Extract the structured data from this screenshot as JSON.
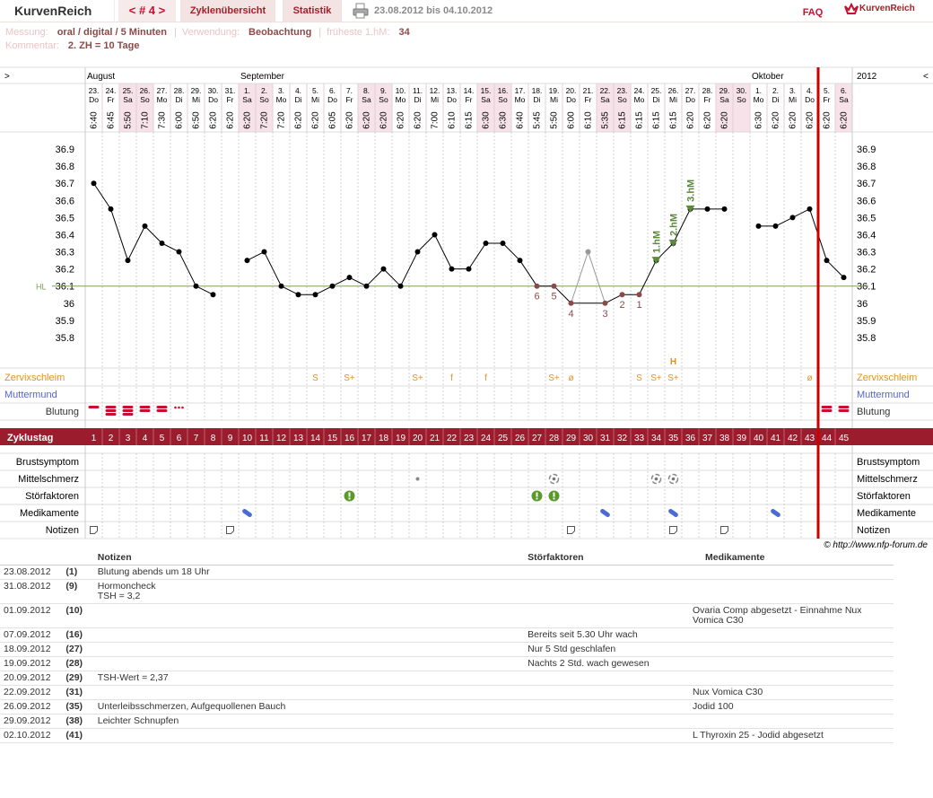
{
  "header": {
    "logo": "KurvenReich",
    "cycle_nav": "< # 4 >",
    "tabs": [
      "Zyklenübersicht",
      "Statistik"
    ],
    "range": "23.08.2012 bis 04.10.2012",
    "faq": "FAQ",
    "brand": "KurvenReich"
  },
  "info": {
    "measure_label": "Messung:",
    "measure": "oral / digital / 5 Minuten",
    "separator": "|",
    "use_label": "Verwendung:",
    "use": "Beobachtung",
    "first_label": "früheste 1.hM:",
    "first": 34,
    "comment_label": "Kommentar:",
    "comment": "2. ZH = 10 Tage"
  },
  "chart": {
    "type": "line",
    "nav_left": ">",
    "nav_right": "<",
    "year": "2012",
    "months": [
      {
        "label": "August",
        "day": 1
      },
      {
        "label": "September",
        "day": 10
      },
      {
        "label": "Oktober",
        "day": 40
      }
    ],
    "dates": [
      "23.",
      "24.",
      "25.",
      "26.",
      "27.",
      "28.",
      "29.",
      "30.",
      "31.",
      "1.",
      "2.",
      "3.",
      "4.",
      "5.",
      "6.",
      "7.",
      "8.",
      "9.",
      "10.",
      "11.",
      "12.",
      "13.",
      "14.",
      "15.",
      "16.",
      "17.",
      "18.",
      "19.",
      "20.",
      "21.",
      "22.",
      "23.",
      "24.",
      "25.",
      "26.",
      "27.",
      "28.",
      "29.",
      "30.",
      "1.",
      "2.",
      "3.",
      "4.",
      "5.",
      "6."
    ],
    "weekdays": [
      "Do",
      "Fr",
      "Sa",
      "So",
      "Mo",
      "Di",
      "Mi",
      "Do",
      "Fr",
      "Sa",
      "So",
      "Mo",
      "Di",
      "Mi",
      "Do",
      "Fr",
      "Sa",
      "So",
      "Mo",
      "Di",
      "Mi",
      "Do",
      "Fr",
      "Sa",
      "So",
      "Mo",
      "Di",
      "Mi",
      "Do",
      "Fr",
      "Sa",
      "So",
      "Mo",
      "Di",
      "Mi",
      "Do",
      "Fr",
      "Sa",
      "So",
      "Mo",
      "Di",
      "Mi",
      "Do",
      "Fr",
      "Sa"
    ],
    "times": [
      "6:40",
      "6:45",
      "5:50",
      "7:10",
      "7:30",
      "6:00",
      "6:50",
      "6:20",
      "6:20",
      "6:20",
      "7:20",
      "7:20",
      "6:20",
      "6:20",
      "6:05",
      "6:20",
      "6:20",
      "6:20",
      "6:20",
      "6:20",
      "7:00",
      "6:10",
      "6:15",
      "6:30",
      "6:30",
      "6:40",
      "5:45",
      "5:50",
      "6:00",
      "6:10",
      "5:35",
      "6:15",
      "6:15",
      "6:15",
      "6:15",
      "6:20",
      "6:20",
      "6:20",
      null,
      "6:30",
      "6:20",
      "6:20",
      "6:20",
      "6:20",
      "6:20"
    ],
    "temps": [
      36.7,
      36.55,
      36.25,
      36.45,
      36.35,
      36.3,
      36.1,
      36.05,
      null,
      36.25,
      36.3,
      36.1,
      36.05,
      36.05,
      36.1,
      36.15,
      36.1,
      36.2,
      36.1,
      36.3,
      36.4,
      36.2,
      36.2,
      36.35,
      36.35,
      36.25,
      36.1,
      36.1,
      36.0,
      36.3,
      36.0,
      36.05,
      36.05,
      36.25,
      36.35,
      36.55,
      36.55,
      36.55,
      null,
      36.45,
      36.45,
      36.5,
      36.55,
      36.25,
      36.15
    ],
    "color": "#000000",
    "excluded_color": "#999999",
    "excluded_days": [
      30
    ],
    "ylim": [
      35.7,
      37.0
    ],
    "yticks": [
      36.9,
      36.8,
      36.7,
      36.6,
      36.5,
      36.4,
      36.3,
      36.2,
      36.1,
      36,
      35.9,
      35.8
    ],
    "coverline": {
      "label": "HL",
      "value": 36.1,
      "color": "#7aa05a"
    },
    "count_labels": [
      {
        "day": 27,
        "label": 6
      },
      {
        "day": 28,
        "label": 5
      },
      {
        "day": 29,
        "label": 4
      },
      {
        "day": 31,
        "label": 3
      },
      {
        "day": 32,
        "label": 2
      },
      {
        "day": 33,
        "label": 1
      }
    ],
    "count_color": "#8a4a4a",
    "hm_labels": [
      {
        "day": 34,
        "label": "1.hM"
      },
      {
        "day": 35,
        "label": "2.hM"
      },
      {
        "day": 36,
        "label": "3.hM"
      }
    ],
    "hm_color": "#5a8a3a",
    "h_label": {
      "day": 35,
      "label": "H"
    },
    "cycle_end_day": 43,
    "cervix": {
      "label": "Zervixschleim",
      "color": "#e8901e",
      "entries": [
        {
          "day": 14,
          "text": "S"
        },
        {
          "day": 16,
          "text": "S+"
        },
        {
          "day": 20,
          "text": "S+"
        },
        {
          "day": 22,
          "text": "f"
        },
        {
          "day": 24,
          "text": "f"
        },
        {
          "day": 28,
          "text": "S+"
        },
        {
          "day": 29,
          "text": "ø"
        },
        {
          "day": 33,
          "text": "S"
        },
        {
          "day": 34,
          "text": "S+"
        },
        {
          "day": 35,
          "text": "S+"
        },
        {
          "day": 43,
          "text": "ø"
        }
      ]
    },
    "cervix_os": {
      "label": "Muttermund",
      "color": "#5566cc"
    },
    "bleeding": {
      "label": "Blutung",
      "color": "#c8102e",
      "entries": [
        {
          "day": 1,
          "level": 1
        },
        {
          "day": 2,
          "level": 3
        },
        {
          "day": 3,
          "level": 3
        },
        {
          "day": 4,
          "level": 2
        },
        {
          "day": 5,
          "level": 2
        },
        {
          "day": 6,
          "level": 0.5
        },
        {
          "day": 44,
          "level": 2
        },
        {
          "day": 45,
          "level": 2
        }
      ]
    },
    "cycle_label": "Zyklustag",
    "cycle_days": [
      1,
      2,
      3,
      4,
      5,
      6,
      7,
      8,
      9,
      10,
      11,
      12,
      13,
      14,
      15,
      16,
      17,
      18,
      19,
      20,
      21,
      22,
      23,
      24,
      25,
      26,
      27,
      28,
      29,
      30,
      31,
      32,
      33,
      34,
      35,
      36,
      37,
      38,
      39,
      40,
      41,
      42,
      43,
      44,
      45
    ],
    "lower_rows": [
      {
        "label": "Brustsymptom"
      },
      {
        "label": "Mittelschmerz",
        "icon": "pain",
        "days": [
          28,
          34,
          35
        ],
        "weak_days": [
          20
        ]
      },
      {
        "label": "Störfaktoren",
        "icon": "alert",
        "days": [
          16,
          27,
          28
        ]
      },
      {
        "label": "Medikamente",
        "icon": "pill",
        "days": [
          10,
          31,
          35,
          41
        ]
      },
      {
        "label": "Notizen",
        "icon": "note",
        "days": [
          1,
          9,
          29,
          35,
          38
        ]
      }
    ]
  },
  "footer": "© http://www.nfp-forum.de",
  "notes": {
    "headers": [
      "Notizen",
      "Störfaktoren",
      "Medikamente"
    ],
    "rows": [
      {
        "date": "23.08.2012",
        "day": "(1)",
        "notes": [
          "Blutung abends um 18 Uhr"
        ],
        "disturbance": null,
        "medication": null
      },
      {
        "date": "31.08.2012",
        "day": "(9)",
        "notes": [
          "Hormoncheck",
          "TSH = 3,2"
        ],
        "disturbance": null,
        "medication": null
      },
      {
        "date": "01.09.2012",
        "day": "(10)",
        "notes": null,
        "disturbance": null,
        "medication": "Ovaria Comp abgesetzt - Einnahme Nux Vomica C30"
      },
      {
        "date": "07.09.2012",
        "day": "(16)",
        "notes": null,
        "disturbance": "Bereits seit 5.30 Uhr wach",
        "medication": null
      },
      {
        "date": "18.09.2012",
        "day": "(27)",
        "notes": null,
        "disturbance": "Nur 5 Std geschlafen",
        "medication": null
      },
      {
        "date": "19.09.2012",
        "day": "(28)",
        "notes": null,
        "disturbance": "Nachts 2 Std. wach gewesen",
        "medication": null
      },
      {
        "date": "20.09.2012",
        "day": "(29)",
        "notes": [
          "TSH-Wert = 2,37"
        ],
        "disturbance": null,
        "medication": null
      },
      {
        "date": "22.09.2012",
        "day": "(31)",
        "notes": null,
        "disturbance": null,
        "medication": "Nux Vomica C30"
      },
      {
        "date": "26.09.2012",
        "day": "(35)",
        "notes": [
          "Unterleibsschmerzen, Aufgequollenen Bauch"
        ],
        "disturbance": null,
        "medication": "Jodid 100"
      },
      {
        "date": "29.09.2012",
        "day": "(38)",
        "notes": [
          "Leichter Schnupfen"
        ],
        "disturbance": null,
        "medication": null
      },
      {
        "date": "02.10.2012",
        "day": "(41)",
        "notes": null,
        "disturbance": null,
        "medication": "L Thyroxin 25 - Jodid abgesetzt"
      }
    ]
  }
}
